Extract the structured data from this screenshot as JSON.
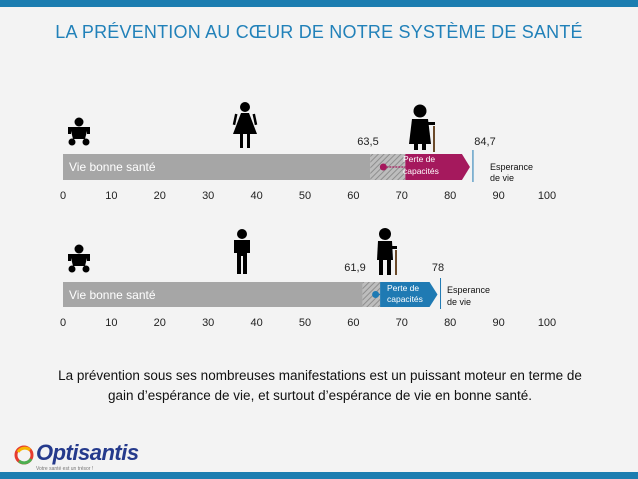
{
  "title": "LA PRÉVENTION AU CŒUR DE NOTRE SYSTÈME DE SANTÉ",
  "caption_line1": "La prévention sous ses nombreuses manifestations est un puissant moteur en terme de",
  "caption_line2": "gain d’espérance de vie, et surtout d’espérance de vie en bonne santé.",
  "logo": {
    "name": "Optisantis",
    "tagline": "Votre santé est un trésor !"
  },
  "colors": {
    "accent": "#2181b9",
    "bar": "#a6a6a6",
    "women": "#a5195d",
    "men": "#1f7ab3"
  },
  "chart_data": [
    {
      "type": "bar",
      "name": "women",
      "x_ticks": [
        "0",
        "10",
        "20",
        "30",
        "40",
        "50",
        "60",
        "70",
        "80",
        "90",
        "100"
      ],
      "xlim": [
        0,
        100
      ],
      "healthy_life_end": 63.5,
      "life_expectancy": 84.7,
      "healthy_label": "Vie bonne santé",
      "healthy_value_label": "63,5",
      "life_value_label": "84,7",
      "loss_label_1": "Perte de",
      "loss_label_2": "capacités",
      "expectancy_label_1": "Esperance",
      "expectancy_label_2": "de vie",
      "figures": [
        "baby-icon",
        "woman-icon",
        "elderly-woman-icon"
      ]
    },
    {
      "type": "bar",
      "name": "men",
      "x_ticks": [
        "0",
        "10",
        "20",
        "30",
        "40",
        "50",
        "60",
        "70",
        "80",
        "90",
        "100"
      ],
      "xlim": [
        0,
        100
      ],
      "healthy_life_end": 61.9,
      "life_expectancy": 78,
      "healthy_label": "Vie bonne santé",
      "healthy_value_label": "61,9",
      "life_value_label": "78",
      "loss_label_1": "Perte de",
      "loss_label_2": "capacités",
      "expectancy_label_1": "Esperance",
      "expectancy_label_2": "de vie",
      "figures": [
        "baby-icon",
        "man-icon",
        "elderly-man-icon"
      ]
    }
  ]
}
